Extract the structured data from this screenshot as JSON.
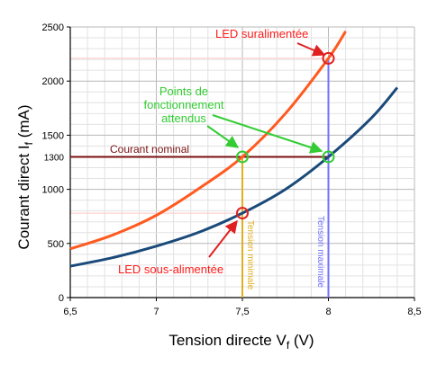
{
  "chart_data": {
    "type": "line",
    "xlabel_main": "Tension directe V",
    "xlabel_sub": "f",
    "xlabel_unit": " (V)",
    "ylabel_main": "Courant direct I",
    "ylabel_sub": "f",
    "ylabel_unit": " (mA)",
    "xlim": [
      6.5,
      8.5
    ],
    "ylim": [
      0,
      2500
    ],
    "x_ticks": [
      {
        "v": 6.5,
        "label": "6,5"
      },
      {
        "v": 7.0,
        "label": "7"
      },
      {
        "v": 7.5,
        "label": "7,5"
      },
      {
        "v": 8.0,
        "label": "8"
      },
      {
        "v": 8.5,
        "label": "8,5"
      }
    ],
    "y_ticks": [
      {
        "v": 0,
        "label": "0"
      },
      {
        "v": 500,
        "label": "500"
      },
      {
        "v": 1000,
        "label": "1000"
      },
      {
        "v": 1500,
        "label": "1500"
      },
      {
        "v": 2000,
        "label": "2000"
      },
      {
        "v": 2500,
        "label": "2500"
      }
    ],
    "extra_y_tick": {
      "v": 1300,
      "label": "1300"
    },
    "grid": true,
    "series": [
      {
        "color": "#ff5a1f",
        "x": [
          6.5,
          6.75,
          7.0,
          7.25,
          7.5,
          7.75,
          8.0,
          8.1
        ],
        "y": [
          450,
          580,
          760,
          1010,
          1300,
          1700,
          2210,
          2460
        ]
      },
      {
        "color": "#1a4a7a",
        "x": [
          6.5,
          6.75,
          7.0,
          7.25,
          7.5,
          7.75,
          8.0,
          8.25,
          8.4
        ],
        "y": [
          290,
          370,
          475,
          605,
          780,
          1000,
          1300,
          1660,
          1940
        ]
      }
    ],
    "reference_lines": [
      {
        "orientation": "horizontal",
        "y": 1300,
        "x_from": 6.5,
        "x_to": 8.0,
        "color": "#7a1010",
        "label": "Courant nominal"
      },
      {
        "orientation": "vertical",
        "x": 7.5,
        "y_from": 0,
        "y_to": 1300,
        "color": "#e0b020",
        "label": "Tension minimale"
      },
      {
        "orientation": "vertical",
        "x": 8.0,
        "y_from": 0,
        "y_to": 2210,
        "color": "#7070ff",
        "label": "Tension maximale"
      }
    ],
    "faint_lines": [
      {
        "y": 2210,
        "x_from": 6.5,
        "x_to": 8.0
      },
      {
        "y": 780,
        "x_from": 6.5,
        "x_to": 7.5
      }
    ],
    "markers": [
      {
        "x": 8.0,
        "y": 2210,
        "color": "#e02020"
      },
      {
        "x": 7.5,
        "y": 780,
        "color": "#e02020"
      },
      {
        "x": 7.5,
        "y": 1300,
        "color": "#33cc33"
      },
      {
        "x": 8.0,
        "y": 1300,
        "color": "#33cc33"
      }
    ],
    "annotations": {
      "suralimentee": {
        "text": "LED suralimentée",
        "color": "#ff1a1a"
      },
      "sousalimentee": {
        "text": "LED sous-alimentée",
        "color": "#ff1a1a"
      },
      "points": {
        "lines": [
          "Points de",
          "fonctionnement",
          "attendus"
        ],
        "color": "#33cc33"
      }
    }
  }
}
